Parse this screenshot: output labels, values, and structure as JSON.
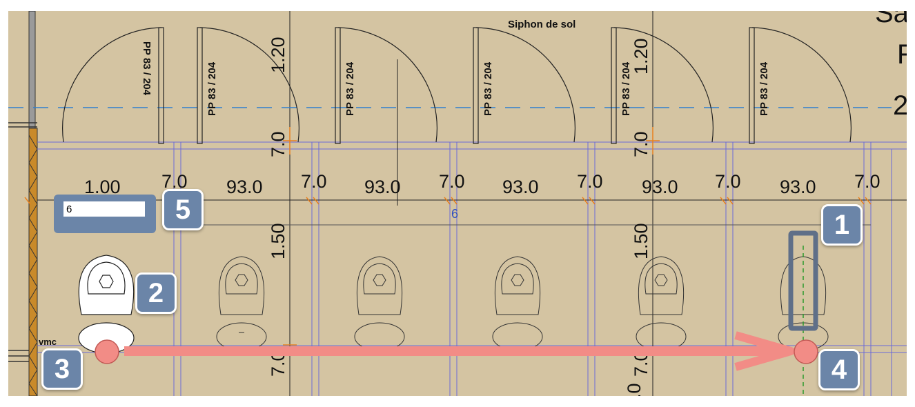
{
  "door_labels": [
    "PP 83 / 204",
    "PP 83 / 204",
    "PP 83 / 204",
    "PP 83 / 204",
    "PP 83 / 204",
    "PP 83 / 204"
  ],
  "top_label": "Siphon de sol",
  "edge_fragments": [
    "Sa",
    "R",
    "2"
  ],
  "dims_horizontal": [
    "1.00",
    "7.0",
    "93.0",
    "7.0",
    "93.0",
    "7.0",
    "93.0",
    "7.0",
    "93.0",
    "7.0",
    "93.0",
    "7.0"
  ],
  "dims_vertical": [
    "1.20",
    "7.0",
    "1.50",
    "7.0",
    "1.20",
    "7.0",
    "1.50",
    "7.0",
    ".0"
  ],
  "small_label": "vmc",
  "dimension_value": "6",
  "input": {
    "value": "6"
  },
  "badges": [
    "1",
    "2",
    "3",
    "4",
    "5"
  ],
  "colors": {
    "background": "#d4c4a2",
    "badge": "#6b85a8",
    "arrow": "#f28c86",
    "dim_orange": "#e8801e",
    "grid_blue": "#6a6ad8",
    "dash_blue": "#2f7fd0"
  }
}
